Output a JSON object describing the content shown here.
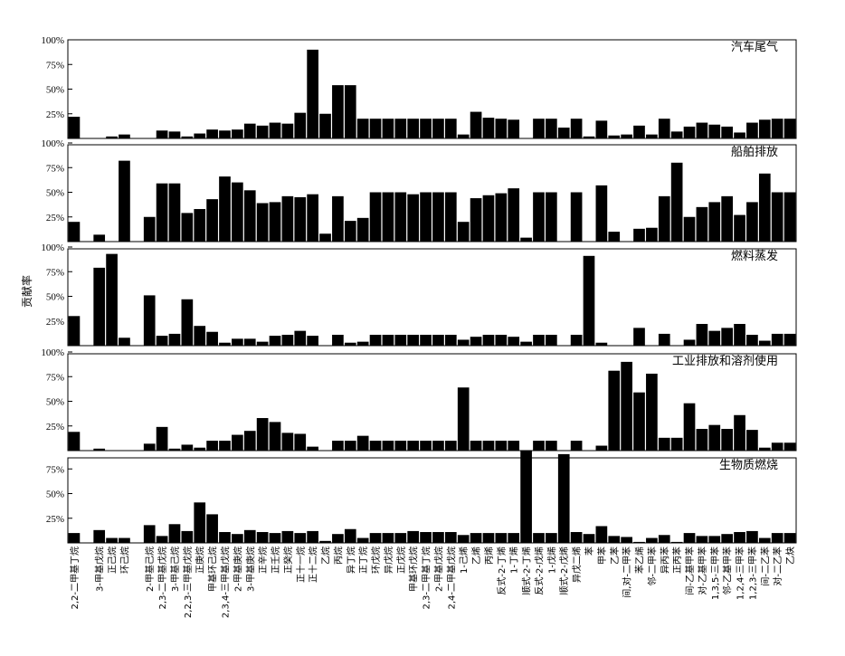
{
  "chart_data": {
    "type": "bar",
    "ylabel": "贡献率",
    "ylim": [
      0,
      100
    ],
    "ytick_labels": [
      "100%",
      "75%",
      "50%",
      "25%"
    ],
    "categories": [
      "2,2-二甲基丁烷",
      "3-甲基戊烷",
      "正己烷",
      "环己烷",
      "2-甲基己烷",
      "2,3-二甲基戊烷",
      "3-甲基己烷",
      "2,2,3-三甲基戊烷",
      "正庚烷",
      "甲基环己烷",
      "2,3,4-三甲基戊烷",
      "2-甲基庚烷",
      "3-甲基庚烷",
      "正辛烷",
      "正壬烷",
      "正癸烷",
      "正十一烷",
      "正十二烷",
      "乙烷",
      "丙烷",
      "异丁烷",
      "正丁烷",
      "环戊烷",
      "异戊烷",
      "正戊烷",
      "甲基环戊烷",
      "2,3-二甲基丁烷",
      "2-甲基戊烷",
      "2,4-二甲基戊烷",
      "1-己烯",
      "乙烯",
      "丙烯",
      "反式-2-丁烯",
      "1-丁烯",
      "顺式-2-丁烯",
      "反式-2-戊烯",
      "1-戊烯",
      "顺式-2-戊烯",
      "异戊二烯",
      "苯",
      "甲苯",
      "乙苯",
      "间,对-二甲苯",
      "苯乙烯",
      "邻-二甲苯",
      "异丙苯",
      "正丙苯",
      "间-乙基甲苯",
      "对-乙基甲苯",
      "1,3,5-三甲苯",
      "邻-乙基甲苯",
      "1,2,4-三甲苯",
      "1,2,3-三甲苯",
      "间-二乙苯",
      "对-二乙苯",
      "乙炔"
    ],
    "label_positions": [
      0,
      2,
      3,
      4,
      6,
      7,
      8,
      9,
      10,
      11,
      12,
      13,
      14,
      15,
      16,
      17,
      18,
      19,
      20,
      21,
      22,
      23,
      24,
      25,
      26,
      27,
      28,
      29,
      30,
      31,
      32,
      33,
      34,
      35,
      36,
      37,
      38,
      39,
      40,
      41,
      42,
      43,
      44,
      45,
      46,
      47,
      48,
      49,
      50,
      51,
      52,
      53,
      54,
      55,
      56,
      57
    ],
    "num_bars": 58,
    "series": [
      {
        "name": "汽车尾气",
        "values": [
          22,
          0,
          2,
          4,
          0,
          8,
          7,
          2,
          5,
          9,
          8,
          9,
          15,
          13,
          16,
          15,
          26,
          90,
          25,
          54,
          54,
          20,
          20,
          20,
          20,
          20,
          20,
          20,
          20,
          4,
          27,
          21,
          20,
          19,
          0,
          20,
          20,
          11,
          20,
          2,
          18,
          3,
          4,
          13,
          4,
          20,
          7,
          12,
          16,
          14,
          12,
          6,
          16,
          19,
          20,
          20
        ]
      },
      {
        "name": "船舶排放",
        "values": [
          20,
          7,
          0,
          82,
          25,
          59,
          59,
          29,
          33,
          43,
          66,
          60,
          52,
          39,
          40,
          46,
          45,
          48,
          8,
          46,
          21,
          24,
          50,
          50,
          50,
          48,
          50,
          50,
          50,
          20,
          44,
          47,
          49,
          54,
          4,
          50,
          50,
          0,
          50,
          0,
          57,
          10,
          0,
          13,
          14,
          46,
          80,
          25,
          35,
          40,
          46,
          27,
          40,
          69,
          50,
          50
        ]
      },
      {
        "name": "燃料蒸发",
        "values": [
          30,
          79,
          93,
          8,
          51,
          10,
          12,
          47,
          20,
          14,
          3,
          7,
          7,
          4,
          10,
          11,
          15,
          10,
          0,
          11,
          3,
          4,
          11,
          11,
          11,
          11,
          11,
          11,
          11,
          6,
          9,
          11,
          11,
          9,
          4,
          11,
          11,
          0,
          11,
          91,
          3,
          0,
          0,
          18,
          0,
          12,
          0,
          6,
          22,
          15,
          18,
          22,
          11,
          5,
          12,
          12
        ]
      },
      {
        "name": "工业排放和溶剂使用",
        "values": [
          19,
          2,
          0,
          0,
          7,
          24,
          2,
          6,
          3,
          10,
          10,
          16,
          20,
          33,
          29,
          18,
          17,
          4,
          0,
          10,
          10,
          15,
          10,
          10,
          10,
          10,
          10,
          10,
          10,
          64,
          10,
          10,
          10,
          10,
          0,
          10,
          10,
          0,
          10,
          0,
          5,
          81,
          90,
          59,
          78,
          13,
          13,
          48,
          22,
          26,
          22,
          36,
          21,
          3,
          8,
          8
        ]
      },
      {
        "name": "生物质燃烧",
        "values": [
          10,
          13,
          5,
          5,
          18,
          7,
          19,
          12,
          41,
          29,
          11,
          9,
          13,
          11,
          10,
          12,
          10,
          12,
          2,
          9,
          14,
          5,
          10,
          10,
          10,
          12,
          11,
          11,
          11,
          8,
          10,
          10,
          10,
          10,
          94,
          10,
          10,
          90,
          11,
          9,
          17,
          7,
          6,
          1,
          5,
          8,
          1,
          10,
          7,
          7,
          9,
          11,
          12,
          5,
          10,
          10
        ]
      }
    ]
  }
}
